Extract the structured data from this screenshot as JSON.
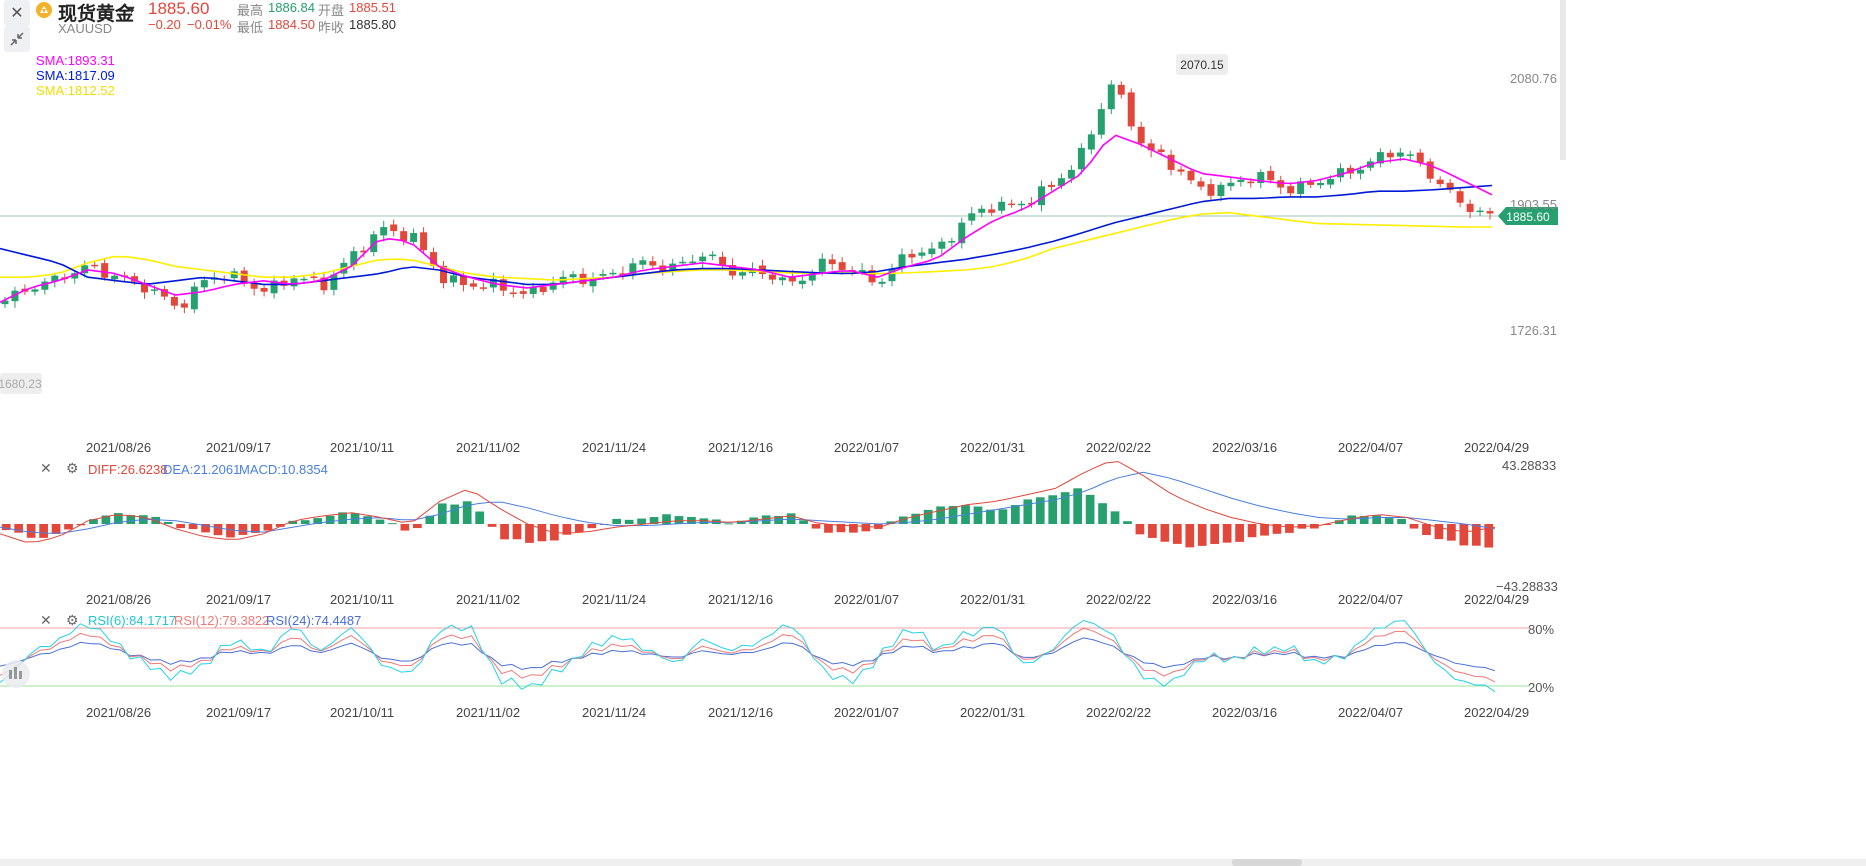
{
  "header": {
    "symbol_name": "现货黄金",
    "symbol_code": "XAUUSD",
    "last_price": "1885.60",
    "change": "−0.20",
    "change_pct": "−0.01%",
    "high_label": "最高",
    "high_value": "1886.84",
    "low_label": "最低",
    "low_value": "1884.50",
    "open_label": "开盘",
    "open_value": "1885.51",
    "prev_label": "昨收",
    "prev_value": "1885.80"
  },
  "colors": {
    "up": "#26a06e",
    "down": "#e2473b",
    "sma_fast": "#ff00ff",
    "sma_mid": "#0019d6",
    "sma_slow": "#ffee00",
    "diff": "#e2473b",
    "dea": "#4a7fe0",
    "rsi6": "#22d3e6",
    "rsi12": "#f07878",
    "rsi24": "#4a6fd8",
    "price_tag": "#26a06e"
  },
  "icons": {
    "close": "close-icon",
    "collapse": "collapse-icon",
    "dropdown": "caret-down-icon",
    "coin": "gold-coin-icon",
    "settings": "gear-icon"
  },
  "chart_data": [
    {
      "type": "candlestick",
      "panel": "price",
      "sma_labels": [
        "SMA:1893.31",
        "SMA:1817.09",
        "SMA:1812.52"
      ],
      "price_ticks": [
        "2080.76",
        "1903.55",
        "1726.31"
      ],
      "high_annotation": "2070.15",
      "low_annotation": "1680.23",
      "last_price_tag": "1885.60",
      "ylim": [
        1680,
        2090
      ],
      "x_ticks": [
        "2021/08/26",
        "2021/09/17",
        "2021/10/11",
        "2021/11/02",
        "2021/11/24",
        "2021/12/16",
        "2022/01/07",
        "2022/01/31",
        "2022/02/22",
        "2022/03/16",
        "2022/04/07",
        "2022/04/29"
      ],
      "close_anchors": [
        1765,
        1790,
        1800,
        1815,
        1800,
        1780,
        1760,
        1800,
        1800,
        1780,
        1800,
        1792,
        1830,
        1870,
        1855,
        1800,
        1790,
        1785,
        1778,
        1795,
        1800,
        1805,
        1820,
        1815,
        1830,
        1810,
        1805,
        1790,
        1820,
        1810,
        1795,
        1830,
        1840,
        1880,
        1900,
        1905,
        1925,
        1975,
        2070,
        1990,
        1960,
        1920,
        1930,
        1940,
        1925,
        1930,
        1945,
        1965,
        1975,
        1945,
        1900,
        1885
      ],
      "sma_fast": [
        1765,
        1785,
        1795,
        1810,
        1805,
        1790,
        1775,
        1780,
        1790,
        1795,
        1790,
        1795,
        1815,
        1855,
        1850,
        1815,
        1800,
        1790,
        1785,
        1790,
        1795,
        1800,
        1810,
        1815,
        1820,
        1815,
        1810,
        1800,
        1805,
        1810,
        1800,
        1815,
        1825,
        1855,
        1880,
        1895,
        1920,
        1945,
        2000,
        1985,
        1965,
        1945,
        1940,
        1935,
        1930,
        1935,
        1945,
        1960,
        1965,
        1955,
        1935,
        1915
      ],
      "sma_mid": [
        1840,
        1830,
        1820,
        1800,
        1795,
        1790,
        1795,
        1800,
        1795,
        1790,
        1790,
        1795,
        1800,
        1805,
        1815,
        1810,
        1800,
        1795,
        1790,
        1790,
        1795,
        1800,
        1805,
        1810,
        1812,
        1812,
        1810,
        1808,
        1806,
        1805,
        1808,
        1815,
        1820,
        1825,
        1832,
        1840,
        1850,
        1862,
        1875,
        1885,
        1895,
        1905,
        1910,
        1910,
        1912,
        1912,
        1915,
        1920,
        1920,
        1922,
        1925,
        1928
      ],
      "sma_slow": [
        1800,
        1800,
        1805,
        1820,
        1830,
        1825,
        1815,
        1810,
        1805,
        1800,
        1800,
        1805,
        1815,
        1825,
        1825,
        1815,
        1805,
        1800,
        1798,
        1796,
        1798,
        1800,
        1805,
        1808,
        1810,
        1810,
        1808,
        1806,
        1806,
        1806,
        1805,
        1806,
        1808,
        1810,
        1815,
        1825,
        1840,
        1850,
        1860,
        1870,
        1880,
        1888,
        1890,
        1885,
        1880,
        1875,
        1874,
        1873,
        1872,
        1871,
        1870,
        1870
      ]
    },
    {
      "type": "bar",
      "panel": "macd",
      "labels": [
        "DIFF:26.6238",
        "DEA:21.2061",
        "MACD:10.8354"
      ],
      "ylim_labels": [
        "43.28833",
        "−43.28833"
      ],
      "ylim": [
        -43.28833,
        43.28833
      ],
      "x_ticks": [
        "2021/08/26",
        "2021/09/17",
        "2021/10/11",
        "2021/11/02",
        "2021/11/24",
        "2021/12/16",
        "2022/01/07",
        "2022/01/31",
        "2022/02/22",
        "2022/03/16",
        "2022/04/07",
        "2022/04/29"
      ],
      "macd_anchors": [
        -4,
        -9,
        -5,
        3,
        7,
        5,
        -2,
        -6,
        -8,
        -4,
        2,
        5,
        7,
        2,
        -5,
        12,
        14,
        -8,
        -12,
        -9,
        -3,
        2,
        4,
        6,
        3,
        1,
        5,
        6,
        -4,
        -6,
        -3,
        6,
        10,
        12,
        8,
        14,
        18,
        22,
        10,
        -6,
        -12,
        -14,
        -12,
        -8,
        -5,
        -3,
        4,
        6,
        2,
        -8,
        -12,
        -15
      ],
      "diff_anchors": [
        -6,
        -12,
        -8,
        2,
        6,
        4,
        -3,
        -8,
        -10,
        -6,
        2,
        5,
        7,
        4,
        0,
        14,
        22,
        10,
        0,
        -6,
        -5,
        -2,
        0,
        2,
        2,
        1,
        3,
        5,
        0,
        -1,
        -2,
        4,
        8,
        12,
        14,
        18,
        22,
        32,
        40,
        30,
        18,
        10,
        4,
        0,
        -2,
        -1,
        3,
        6,
        4,
        -2,
        -5,
        -2
      ],
      "dea_anchors": [
        -2,
        -5,
        -6,
        -3,
        1,
        3,
        2,
        -1,
        -4,
        -5,
        -2,
        1,
        3,
        4,
        2,
        6,
        12,
        14,
        10,
        5,
        1,
        -1,
        -1,
        0,
        1,
        1,
        2,
        3,
        2,
        1,
        0,
        1,
        3,
        6,
        9,
        12,
        15,
        20,
        28,
        32,
        28,
        22,
        16,
        11,
        7,
        4,
        3,
        4,
        4,
        2,
        0,
        -3
      ]
    },
    {
      "type": "line",
      "panel": "rsi",
      "labels": [
        "RSI(6):84.1717",
        "RSI(12):79.3822",
        "RSI(24):74.4487"
      ],
      "levels": [
        "80%",
        "20%"
      ],
      "ylim": [
        15,
        90
      ],
      "x_ticks": [
        "2021/08/26",
        "2021/09/17",
        "2021/10/11",
        "2021/11/02",
        "2021/11/24",
        "2021/12/16",
        "2022/01/07",
        "2022/01/31",
        "2022/02/22",
        "2022/03/16",
        "2022/04/07",
        "2022/04/29"
      ],
      "rsi6_anchors": [
        22,
        55,
        70,
        85,
        60,
        40,
        30,
        45,
        70,
        50,
        80,
        55,
        85,
        45,
        30,
        75,
        82,
        30,
        20,
        35,
        55,
        70,
        60,
        45,
        70,
        55,
        65,
        85,
        40,
        25,
        50,
        80,
        55,
        75,
        85,
        40,
        60,
        88,
        70,
        30,
        25,
        50,
        45,
        55,
        60,
        45,
        55,
        80,
        85,
        40,
        25,
        20
      ],
      "rsi12_anchors": [
        30,
        52,
        65,
        75,
        58,
        45,
        38,
        48,
        62,
        52,
        70,
        55,
        75,
        48,
        38,
        68,
        72,
        38,
        30,
        40,
        52,
        62,
        57,
        48,
        62,
        53,
        60,
        75,
        45,
        35,
        50,
        70,
        55,
        68,
        75,
        45,
        58,
        80,
        65,
        38,
        33,
        50,
        47,
        53,
        57,
        48,
        53,
        72,
        75,
        45,
        33,
        28
      ],
      "rsi24_anchors": [
        40,
        50,
        58,
        66,
        56,
        48,
        44,
        50,
        57,
        52,
        62,
        54,
        66,
        50,
        44,
        62,
        64,
        44,
        38,
        45,
        50,
        56,
        54,
        50,
        57,
        52,
        56,
        66,
        48,
        42,
        50,
        62,
        54,
        60,
        66,
        48,
        55,
        70,
        60,
        45,
        40,
        50,
        48,
        52,
        54,
        50,
        52,
        62,
        64,
        50,
        42,
        38
      ]
    }
  ]
}
